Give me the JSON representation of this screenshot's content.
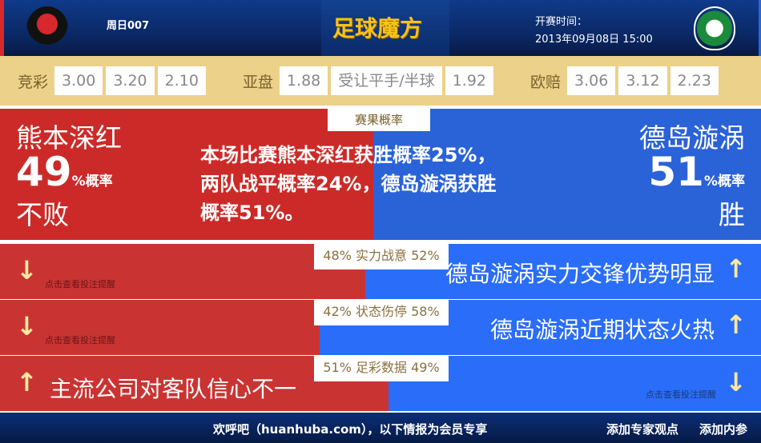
{
  "header": {
    "match_no": "周日007",
    "logo_text": "足球魔方",
    "kickoff_label": "开赛时间：",
    "kickoff_time": "2013年09月08日 15:00",
    "home_crest": "kumamoto-crest",
    "away_crest": "tokushima-vortis-crest"
  },
  "odds": {
    "jingcai": {
      "label": "竞彩",
      "values": [
        "3.00",
        "3.20",
        "2.10"
      ]
    },
    "yapan": {
      "label": "亚盘",
      "home": "1.88",
      "handicap": "受让平手/半球",
      "away": "1.92"
    },
    "oupei": {
      "label": "欧赔",
      "values": [
        "3.06",
        "3.12",
        "2.23"
      ]
    }
  },
  "result": {
    "tab": "赛果概率",
    "home_team": "熊本深红",
    "home_pct": "49",
    "pct_unit": "%概率",
    "home_outcome": "不败",
    "away_team": "德岛漩涡",
    "away_pct": "51",
    "away_outcome": "胜",
    "summary": [
      "本场比赛熊本深红获胜概率25%，",
      "两队战平概率24%，德岛漩涡获胜",
      "概率51%。"
    ],
    "home_share": 49
  },
  "rows": [
    {
      "label": "48% 实力战意 52%",
      "home_share": 48,
      "hint": "点击查看投注提醒",
      "headline": "德岛漩涡实力交锋优势明显"
    },
    {
      "label": "42% 状态伤停 58%",
      "home_share": 42,
      "hint": "点击查看投注提醒",
      "headline": "德岛漩涡近期状态火热"
    },
    {
      "label": "51% 足彩数据 49%",
      "home_share": 51,
      "hint": "点击查看投注提醒",
      "headline": "主流公司对客队信心不一"
    }
  ],
  "footer": {
    "notice": "欢呼吧（huanhuba.com），以下情报为会员专享",
    "add_expert": "添加专家观点",
    "add_inside": "添加内参"
  },
  "colors": {
    "home": "#cc2a28",
    "away": "#2a6df8",
    "arrow": "#fce8a0"
  }
}
